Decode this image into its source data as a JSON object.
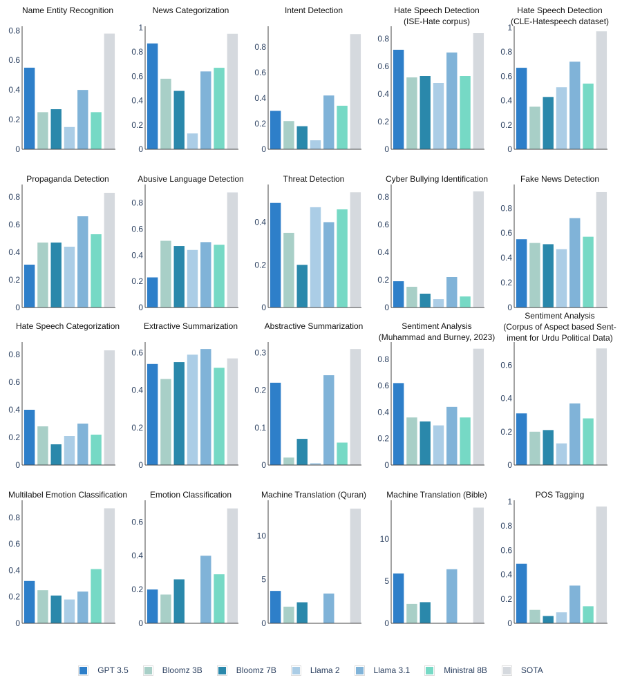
{
  "series": [
    {
      "name": "GPT 3.5",
      "color": "#2e7fc9"
    },
    {
      "name": "Bloomz 3B",
      "color": "#a8cfc7"
    },
    {
      "name": "Bloomz 7B",
      "color": "#2a88ab"
    },
    {
      "name": "Llama 2",
      "color": "#abcde6"
    },
    {
      "name": "Llama 3.1",
      "color": "#80b3d8"
    },
    {
      "name": "Ministral 8B",
      "color": "#76d9c5"
    },
    {
      "name": "SOTA",
      "color": "#d5d9de"
    }
  ],
  "chart_data": [
    {
      "type": "bar",
      "title": [
        "Name Entity Recognition"
      ],
      "yticks": [
        0,
        0.2,
        0.4,
        0.6,
        0.8
      ],
      "ylim": [
        0,
        0.82
      ],
      "values": [
        0.55,
        0.25,
        0.27,
        0.15,
        0.4,
        0.25,
        0.78
      ]
    },
    {
      "type": "bar",
      "title": [
        "News Categorization"
      ],
      "yticks": [
        0,
        0.2,
        0.4,
        0.6,
        0.8,
        1
      ],
      "ylim": [
        0,
        1.0
      ],
      "values": [
        0.87,
        0.58,
        0.48,
        0.13,
        0.64,
        0.67,
        0.95
      ]
    },
    {
      "type": "bar",
      "title": [
        "Intent Detection"
      ],
      "yticks": [
        0,
        0.2,
        0.4,
        0.6,
        0.8
      ],
      "ylim": [
        0,
        0.95
      ],
      "values": [
        0.3,
        0.22,
        0.18,
        0.07,
        0.42,
        0.34,
        0.9
      ]
    },
    {
      "type": "bar",
      "title": [
        "Hate Speech Detection",
        "(ISE-Hate corpus)"
      ],
      "yticks": [
        0,
        0.2,
        0.4,
        0.6,
        0.8
      ],
      "ylim": [
        0,
        0.88
      ],
      "values": [
        0.72,
        0.52,
        0.53,
        0.48,
        0.7,
        0.53,
        0.84
      ]
    },
    {
      "type": "bar",
      "title": [
        "Hate Speech Detection",
        "(CLE-Hatespeech dataset)"
      ],
      "yticks": [
        0,
        0.2,
        0.4,
        0.6,
        0.8,
        1
      ],
      "ylim": [
        0,
        1.0
      ],
      "values": [
        0.67,
        0.35,
        0.43,
        0.51,
        0.72,
        0.54,
        0.97
      ]
    },
    {
      "type": "bar",
      "title": [
        "Propaganda Detection"
      ],
      "yticks": [
        0,
        0.2,
        0.4,
        0.6,
        0.8
      ],
      "ylim": [
        0,
        0.88
      ],
      "values": [
        0.31,
        0.47,
        0.47,
        0.44,
        0.66,
        0.53,
        0.83
      ]
    },
    {
      "type": "bar",
      "title": [
        "Abusive Language Detection"
      ],
      "yticks": [
        0,
        0.2,
        0.4,
        0.6,
        0.8
      ],
      "ylim": [
        0,
        0.93
      ],
      "values": [
        0.23,
        0.51,
        0.47,
        0.44,
        0.5,
        0.48,
        0.88
      ]
    },
    {
      "type": "bar",
      "title": [
        "Threat Detection"
      ],
      "yticks": [
        0,
        0.2,
        0.4
      ],
      "ylim": [
        0,
        0.57
      ],
      "values": [
        0.49,
        0.35,
        0.2,
        0.47,
        0.4,
        0.46,
        0.54
      ]
    },
    {
      "type": "bar",
      "title": [
        "Cyber Bullying Identification"
      ],
      "yticks": [
        0,
        0.2,
        0.4,
        0.6,
        0.8
      ],
      "ylim": [
        0,
        0.88
      ],
      "values": [
        0.19,
        0.15,
        0.1,
        0.06,
        0.22,
        0.08,
        0.84
      ]
    },
    {
      "type": "bar",
      "title": [
        "Fake News Detection"
      ],
      "yticks": [
        0,
        0.2,
        0.4,
        0.6,
        0.8
      ],
      "ylim": [
        0,
        0.98
      ],
      "values": [
        0.55,
        0.52,
        0.51,
        0.47,
        0.72,
        0.57,
        0.93
      ]
    },
    {
      "type": "bar",
      "title": [
        "Hate Speech Categorization"
      ],
      "yticks": [
        0,
        0.2,
        0.4,
        0.6,
        0.8
      ],
      "ylim": [
        0,
        0.88
      ],
      "values": [
        0.4,
        0.28,
        0.15,
        0.21,
        0.3,
        0.22,
        0.83
      ]
    },
    {
      "type": "bar",
      "title": [
        "Extractive Summarization"
      ],
      "yticks": [
        0,
        0.2,
        0.4,
        0.6
      ],
      "ylim": [
        0,
        0.65
      ],
      "values": [
        0.54,
        0.46,
        0.55,
        0.59,
        0.62,
        0.52,
        0.57
      ]
    },
    {
      "type": "bar",
      "title": [
        "Abstractive Summarization"
      ],
      "yticks": [
        0,
        0.1,
        0.2,
        0.3
      ],
      "ylim": [
        0,
        0.325
      ],
      "values": [
        0.22,
        0.02,
        0.07,
        0.005,
        0.24,
        0.06,
        0.31
      ]
    },
    {
      "type": "bar",
      "title": [
        "Sentiment Analysis",
        "(Muhammad and Burney, 2023)"
      ],
      "yticks": [
        0,
        0.2,
        0.4,
        0.6,
        0.8
      ],
      "ylim": [
        0,
        0.92
      ],
      "values": [
        0.62,
        0.36,
        0.33,
        0.3,
        0.44,
        0.36,
        0.88
      ]
    },
    {
      "type": "bar",
      "title": [
        "Sentiment Analysis",
        "(Corpus of Aspect based Sent-",
        "iment for Urdu Political Data)"
      ],
      "yticks": [
        0,
        0.2,
        0.4,
        0.6
      ],
      "ylim": [
        0,
        0.73
      ],
      "values": [
        0.31,
        0.2,
        0.21,
        0.13,
        0.37,
        0.28,
        0.7
      ]
    },
    {
      "type": "bar",
      "title": [
        "Multilabel Emotion Classification"
      ],
      "yticks": [
        0,
        0.2,
        0.4,
        0.6,
        0.8
      ],
      "ylim": [
        0,
        0.92
      ],
      "values": [
        0.32,
        0.25,
        0.21,
        0.18,
        0.24,
        0.41,
        0.87
      ]
    },
    {
      "type": "bar",
      "title": [
        "Emotion Classification"
      ],
      "yticks": [
        0,
        0.2,
        0.4,
        0.6
      ],
      "ylim": [
        0,
        0.72
      ],
      "values": [
        0.2,
        0.17,
        0.26,
        0.0,
        0.4,
        0.29,
        0.68
      ]
    },
    {
      "type": "bar",
      "title": [
        "Machine Translation (Quran)"
      ],
      "yticks": [
        0,
        5,
        10
      ],
      "ylim": [
        0,
        13.9
      ],
      "values": [
        3.7,
        1.9,
        2.4,
        0.0,
        3.4,
        0.0,
        13.1
      ]
    },
    {
      "type": "bar",
      "title": [
        "Machine Translation (Bible)"
      ],
      "yticks": [
        0,
        5,
        10
      ],
      "ylim": [
        0,
        14.4
      ],
      "values": [
        5.9,
        2.3,
        2.5,
        0.05,
        6.4,
        0.0,
        13.7
      ]
    },
    {
      "type": "bar",
      "title": [
        "POS Tagging"
      ],
      "yticks": [
        0,
        0.2,
        0.4,
        0.6,
        0.8,
        1
      ],
      "ylim": [
        0,
        1.0
      ],
      "values": [
        0.49,
        0.11,
        0.06,
        0.09,
        0.31,
        0.14,
        0.96
      ]
    }
  ]
}
